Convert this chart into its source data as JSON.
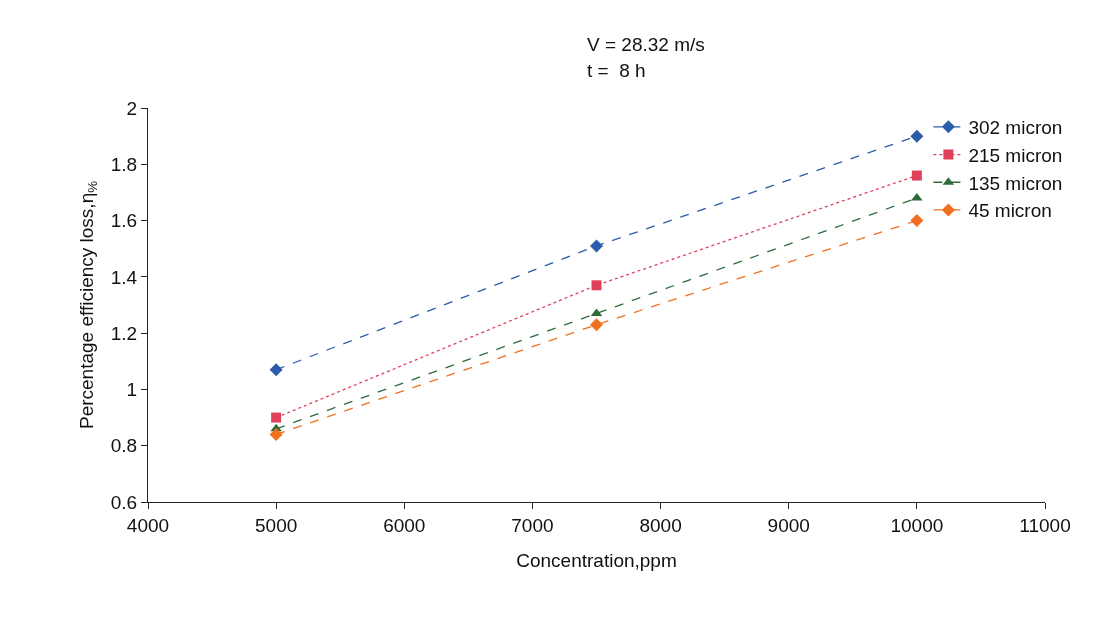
{
  "chart_data": {
    "type": "line",
    "xlabel": "Concentration,ppm",
    "ylabel": "Percentage efficiency loss,η$_{%}$",
    "annotations": [
      "V = 28.32 m/s",
      "t =  8 h"
    ],
    "x": [
      5000,
      7500,
      10000
    ],
    "series": [
      {
        "name": "302 micron",
        "color": "#2a5caa",
        "values": [
          1.07,
          1.51,
          1.9
        ],
        "marker": "diamond",
        "line_style": "dashed"
      },
      {
        "name": "215 micron",
        "color": "#e0405a",
        "values": [
          0.9,
          1.37,
          1.76
        ],
        "marker": "square",
        "line_style": "dotted"
      },
      {
        "name": "135 micron",
        "color": "#2e6b3a",
        "values": [
          0.86,
          1.27,
          1.68
        ],
        "marker": "triangle",
        "line_style": "dashed"
      },
      {
        "name": "45 micron",
        "color": "#f07020",
        "values": [
          0.84,
          1.23,
          1.6
        ],
        "marker": "diamond",
        "line_style": "dashed"
      }
    ],
    "xlim": [
      4000,
      11000
    ],
    "xticks": [
      4000,
      5000,
      6000,
      7000,
      8000,
      9000,
      10000,
      11000
    ],
    "ylim": [
      0.6,
      2
    ],
    "yticks": [
      0.6,
      0.8,
      1,
      1.2,
      1.4,
      1.6,
      1.8,
      2
    ],
    "grid": false,
    "legend": "top right"
  }
}
